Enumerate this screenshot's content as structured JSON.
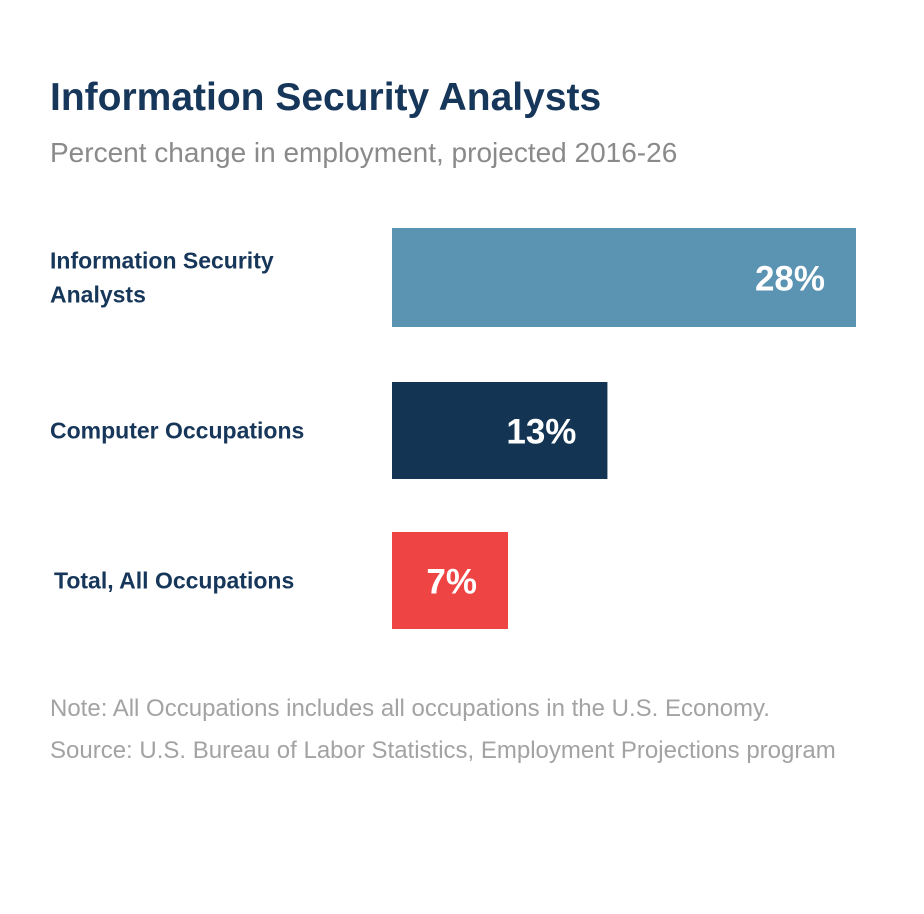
{
  "chart_data": {
    "type": "bar",
    "orientation": "horizontal",
    "title": "Information Security Analysts",
    "subtitle": "Percent change in employment, projected 2016-26",
    "categories": [
      [
        "Information Security",
        "Analysts"
      ],
      [
        "Computer Occupations"
      ],
      [
        "Total, All Occupations"
      ]
    ],
    "values": [
      28,
      13,
      7
    ],
    "value_labels": [
      "28%",
      "13%",
      "7%"
    ],
    "colors": [
      "#5b93b3",
      "#133553",
      "#ef4444"
    ],
    "xlim": [
      0,
      28
    ],
    "grid": false,
    "axes_visible": false
  },
  "note": "Note: All Occupations includes all occupations in the U.S. Economy. Source: U.S. Bureau of Labor Statistics, Employment Projections program"
}
